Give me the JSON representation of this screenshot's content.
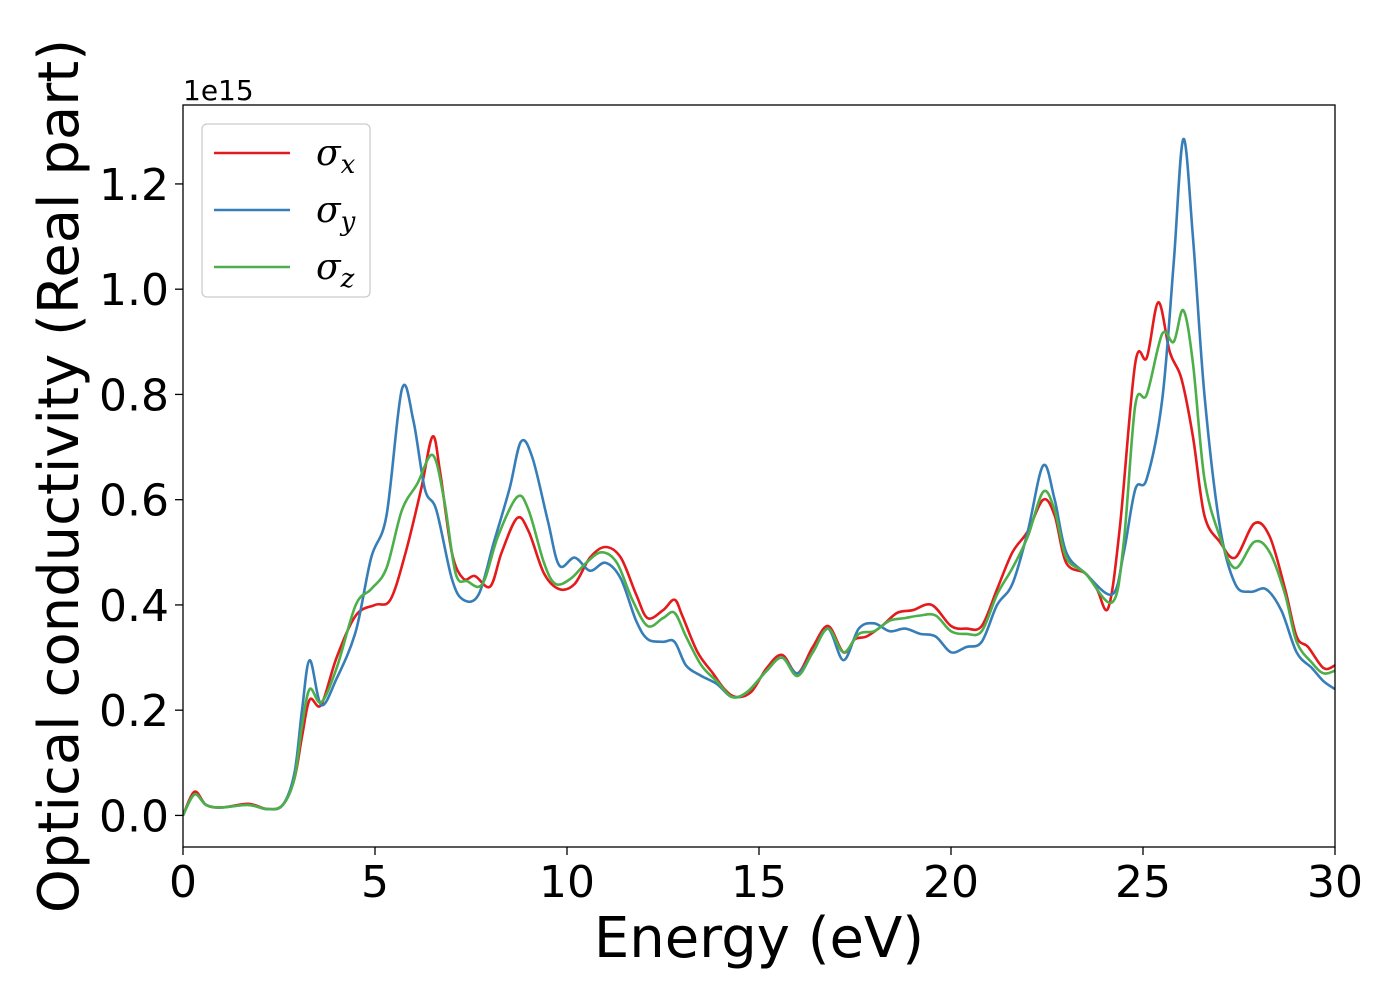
{
  "chart_data": {
    "type": "line",
    "title": "",
    "xlabel": "Energy (eV)",
    "ylabel": "Optical conductivity (Real part)",
    "y_offset_label": "1e15",
    "xlim": [
      0,
      30
    ],
    "ylim": [
      -0.06,
      1.35
    ],
    "x_ticks": [
      0,
      5,
      10,
      15,
      20,
      25,
      30
    ],
    "x_tick_labels": [
      "0",
      "5",
      "10",
      "15",
      "20",
      "25",
      "30"
    ],
    "y_ticks": [
      0.0,
      0.2,
      0.4,
      0.6,
      0.8,
      1.0,
      1.2
    ],
    "y_tick_labels": [
      "0.0",
      "0.2",
      "0.4",
      "0.6",
      "0.8",
      "1.0",
      "1.2"
    ],
    "grid": false,
    "legend_position": "top-left",
    "series": [
      {
        "name": "σx",
        "symbol": "σ",
        "subscript": "x",
        "color": "#e41a1c",
        "points": [
          [
            0,
            0.0
          ],
          [
            0.3,
            0.045
          ],
          [
            0.6,
            0.02
          ],
          [
            1.0,
            0.015
          ],
          [
            1.7,
            0.022
          ],
          [
            2.2,
            0.012
          ],
          [
            2.6,
            0.02
          ],
          [
            2.9,
            0.07
          ],
          [
            3.1,
            0.15
          ],
          [
            3.3,
            0.22
          ],
          [
            3.6,
            0.21
          ],
          [
            4.0,
            0.3
          ],
          [
            4.5,
            0.38
          ],
          [
            5.0,
            0.4
          ],
          [
            5.4,
            0.41
          ],
          [
            5.8,
            0.5
          ],
          [
            6.2,
            0.62
          ],
          [
            6.5,
            0.72
          ],
          [
            6.7,
            0.65
          ],
          [
            7.0,
            0.5
          ],
          [
            7.3,
            0.45
          ],
          [
            7.6,
            0.455
          ],
          [
            8.0,
            0.435
          ],
          [
            8.3,
            0.5
          ],
          [
            8.7,
            0.565
          ],
          [
            9.0,
            0.54
          ],
          [
            9.4,
            0.46
          ],
          [
            9.8,
            0.43
          ],
          [
            10.2,
            0.44
          ],
          [
            10.6,
            0.49
          ],
          [
            11.0,
            0.51
          ],
          [
            11.4,
            0.49
          ],
          [
            11.8,
            0.42
          ],
          [
            12.1,
            0.375
          ],
          [
            12.5,
            0.39
          ],
          [
            12.8,
            0.41
          ],
          [
            13.0,
            0.38
          ],
          [
            13.4,
            0.31
          ],
          [
            13.8,
            0.27
          ],
          [
            14.1,
            0.24
          ],
          [
            14.4,
            0.225
          ],
          [
            14.8,
            0.235
          ],
          [
            15.2,
            0.28
          ],
          [
            15.6,
            0.305
          ],
          [
            16.0,
            0.27
          ],
          [
            16.4,
            0.32
          ],
          [
            16.8,
            0.36
          ],
          [
            17.2,
            0.31
          ],
          [
            17.5,
            0.335
          ],
          [
            17.8,
            0.34
          ],
          [
            18.2,
            0.36
          ],
          [
            18.6,
            0.385
          ],
          [
            19.0,
            0.39
          ],
          [
            19.5,
            0.4
          ],
          [
            20.0,
            0.36
          ],
          [
            20.4,
            0.355
          ],
          [
            20.8,
            0.36
          ],
          [
            21.2,
            0.43
          ],
          [
            21.6,
            0.5
          ],
          [
            22.0,
            0.54
          ],
          [
            22.4,
            0.6
          ],
          [
            22.7,
            0.57
          ],
          [
            23.0,
            0.48
          ],
          [
            23.5,
            0.46
          ],
          [
            23.8,
            0.43
          ],
          [
            24.1,
            0.395
          ],
          [
            24.4,
            0.55
          ],
          [
            24.8,
            0.86
          ],
          [
            25.1,
            0.87
          ],
          [
            25.4,
            0.975
          ],
          [
            25.7,
            0.88
          ],
          [
            26.0,
            0.83
          ],
          [
            26.3,
            0.72
          ],
          [
            26.6,
            0.57
          ],
          [
            27.0,
            0.52
          ],
          [
            27.4,
            0.49
          ],
          [
            27.9,
            0.555
          ],
          [
            28.3,
            0.53
          ],
          [
            28.7,
            0.43
          ],
          [
            29.0,
            0.34
          ],
          [
            29.3,
            0.32
          ],
          [
            29.7,
            0.28
          ],
          [
            30.0,
            0.285
          ]
        ]
      },
      {
        "name": "σy",
        "symbol": "σ",
        "subscript": "y",
        "color": "#377eb8",
        "points": [
          [
            0,
            0.0
          ],
          [
            0.3,
            0.04
          ],
          [
            0.6,
            0.02
          ],
          [
            1.0,
            0.015
          ],
          [
            1.7,
            0.02
          ],
          [
            2.2,
            0.012
          ],
          [
            2.6,
            0.02
          ],
          [
            2.9,
            0.08
          ],
          [
            3.1,
            0.2
          ],
          [
            3.3,
            0.295
          ],
          [
            3.6,
            0.21
          ],
          [
            4.0,
            0.26
          ],
          [
            4.5,
            0.35
          ],
          [
            4.9,
            0.49
          ],
          [
            5.3,
            0.57
          ],
          [
            5.7,
            0.81
          ],
          [
            6.0,
            0.75
          ],
          [
            6.3,
            0.62
          ],
          [
            6.6,
            0.58
          ],
          [
            7.0,
            0.45
          ],
          [
            7.3,
            0.41
          ],
          [
            7.7,
            0.42
          ],
          [
            8.1,
            0.52
          ],
          [
            8.5,
            0.62
          ],
          [
            8.8,
            0.71
          ],
          [
            9.1,
            0.68
          ],
          [
            9.5,
            0.56
          ],
          [
            9.8,
            0.475
          ],
          [
            10.2,
            0.49
          ],
          [
            10.6,
            0.465
          ],
          [
            11.0,
            0.48
          ],
          [
            11.4,
            0.45
          ],
          [
            11.8,
            0.37
          ],
          [
            12.1,
            0.335
          ],
          [
            12.5,
            0.33
          ],
          [
            12.8,
            0.33
          ],
          [
            13.1,
            0.285
          ],
          [
            13.5,
            0.265
          ],
          [
            13.9,
            0.25
          ],
          [
            14.3,
            0.225
          ],
          [
            14.7,
            0.235
          ],
          [
            15.2,
            0.275
          ],
          [
            15.6,
            0.3
          ],
          [
            16.0,
            0.27
          ],
          [
            16.4,
            0.31
          ],
          [
            16.8,
            0.355
          ],
          [
            17.2,
            0.295
          ],
          [
            17.6,
            0.355
          ],
          [
            18.0,
            0.365
          ],
          [
            18.4,
            0.35
          ],
          [
            18.8,
            0.355
          ],
          [
            19.2,
            0.345
          ],
          [
            19.6,
            0.34
          ],
          [
            20.0,
            0.31
          ],
          [
            20.4,
            0.32
          ],
          [
            20.8,
            0.33
          ],
          [
            21.2,
            0.4
          ],
          [
            21.6,
            0.44
          ],
          [
            22.0,
            0.54
          ],
          [
            22.4,
            0.665
          ],
          [
            22.7,
            0.6
          ],
          [
            23.0,
            0.5
          ],
          [
            23.5,
            0.46
          ],
          [
            24.2,
            0.42
          ],
          [
            24.5,
            0.5
          ],
          [
            24.8,
            0.62
          ],
          [
            25.1,
            0.64
          ],
          [
            25.5,
            0.79
          ],
          [
            25.8,
            1.05
          ],
          [
            26.05,
            1.285
          ],
          [
            26.3,
            1.1
          ],
          [
            26.6,
            0.8
          ],
          [
            27.0,
            0.55
          ],
          [
            27.4,
            0.44
          ],
          [
            27.8,
            0.425
          ],
          [
            28.2,
            0.43
          ],
          [
            28.6,
            0.39
          ],
          [
            29.0,
            0.31
          ],
          [
            29.4,
            0.28
          ],
          [
            29.7,
            0.255
          ],
          [
            30.0,
            0.24
          ]
        ]
      },
      {
        "name": "σz",
        "symbol": "σ",
        "subscript": "z",
        "color": "#4daf4a",
        "points": [
          [
            0,
            0.0
          ],
          [
            0.3,
            0.04
          ],
          [
            0.6,
            0.02
          ],
          [
            1.0,
            0.015
          ],
          [
            1.7,
            0.02
          ],
          [
            2.2,
            0.012
          ],
          [
            2.6,
            0.02
          ],
          [
            2.9,
            0.07
          ],
          [
            3.1,
            0.17
          ],
          [
            3.3,
            0.24
          ],
          [
            3.6,
            0.215
          ],
          [
            4.0,
            0.28
          ],
          [
            4.5,
            0.4
          ],
          [
            4.9,
            0.43
          ],
          [
            5.3,
            0.47
          ],
          [
            5.7,
            0.58
          ],
          [
            6.1,
            0.63
          ],
          [
            6.5,
            0.685
          ],
          [
            6.8,
            0.6
          ],
          [
            7.1,
            0.46
          ],
          [
            7.4,
            0.445
          ],
          [
            7.8,
            0.44
          ],
          [
            8.2,
            0.53
          ],
          [
            8.7,
            0.605
          ],
          [
            9.0,
            0.58
          ],
          [
            9.4,
            0.48
          ],
          [
            9.7,
            0.44
          ],
          [
            10.1,
            0.45
          ],
          [
            10.5,
            0.48
          ],
          [
            10.9,
            0.5
          ],
          [
            11.3,
            0.48
          ],
          [
            11.7,
            0.41
          ],
          [
            12.1,
            0.36
          ],
          [
            12.5,
            0.375
          ],
          [
            12.8,
            0.385
          ],
          [
            13.1,
            0.34
          ],
          [
            13.5,
            0.285
          ],
          [
            13.9,
            0.255
          ],
          [
            14.3,
            0.225
          ],
          [
            14.7,
            0.235
          ],
          [
            15.2,
            0.275
          ],
          [
            15.6,
            0.3
          ],
          [
            16.0,
            0.265
          ],
          [
            16.4,
            0.31
          ],
          [
            16.8,
            0.355
          ],
          [
            17.2,
            0.31
          ],
          [
            17.6,
            0.345
          ],
          [
            18.0,
            0.35
          ],
          [
            18.4,
            0.37
          ],
          [
            18.8,
            0.375
          ],
          [
            19.2,
            0.38
          ],
          [
            19.6,
            0.38
          ],
          [
            20.0,
            0.35
          ],
          [
            20.4,
            0.345
          ],
          [
            20.8,
            0.35
          ],
          [
            21.2,
            0.42
          ],
          [
            21.6,
            0.47
          ],
          [
            22.0,
            0.53
          ],
          [
            22.4,
            0.615
          ],
          [
            22.7,
            0.58
          ],
          [
            23.0,
            0.49
          ],
          [
            23.5,
            0.46
          ],
          [
            24.2,
            0.405
          ],
          [
            24.5,
            0.52
          ],
          [
            24.8,
            0.78
          ],
          [
            25.1,
            0.8
          ],
          [
            25.5,
            0.915
          ],
          [
            25.8,
            0.9
          ],
          [
            26.05,
            0.96
          ],
          [
            26.3,
            0.86
          ],
          [
            26.6,
            0.64
          ],
          [
            27.0,
            0.53
          ],
          [
            27.4,
            0.47
          ],
          [
            27.9,
            0.52
          ],
          [
            28.3,
            0.5
          ],
          [
            28.7,
            0.42
          ],
          [
            29.0,
            0.33
          ],
          [
            29.4,
            0.29
          ],
          [
            29.7,
            0.27
          ],
          [
            30.0,
            0.275
          ]
        ]
      }
    ]
  }
}
